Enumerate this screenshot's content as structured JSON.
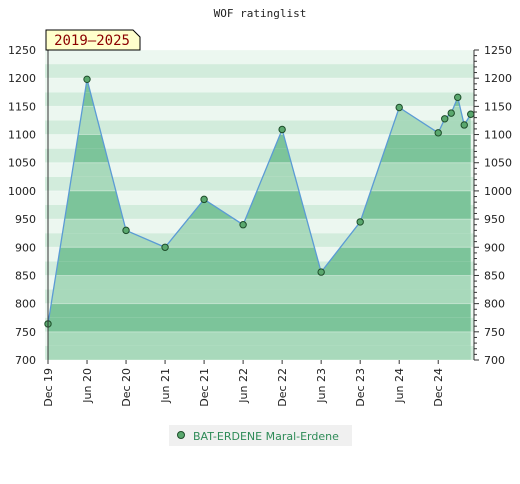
{
  "chart_data": {
    "type": "area",
    "title": "WOF ratinglist",
    "range_badge": "2019–2025",
    "xlabel": "",
    "ylabel": "",
    "ylim": [
      700,
      1250
    ],
    "y_ticks": [
      700,
      750,
      800,
      850,
      900,
      950,
      1000,
      1050,
      1100,
      1150,
      1200,
      1250
    ],
    "x_ticks": [
      {
        "label": "Dec 19",
        "x": 0
      },
      {
        "label": "Jun 20",
        "x": 6
      },
      {
        "label": "Dec 20",
        "x": 12
      },
      {
        "label": "Jun 21",
        "x": 18
      },
      {
        "label": "Dec 21",
        "x": 24
      },
      {
        "label": "Jun 22",
        "x": 30
      },
      {
        "label": "Dec 22",
        "x": 36
      },
      {
        "label": "Jun 23",
        "x": 42
      },
      {
        "label": "Dec 23",
        "x": 48
      },
      {
        "label": "Jun 24",
        "x": 54
      },
      {
        "label": "Dec 24",
        "x": 60
      }
    ],
    "xlim": [
      0,
      65.5
    ],
    "grid": true,
    "legend_position": "bottom",
    "colors": {
      "area_dark": "#7cc49a",
      "area_light": "#a8d9bb",
      "band_dark": "#d2ecdc",
      "band_light": "#ecf7f0",
      "line": "#5b9bd5",
      "marker": "#5aa86e",
      "badge_bg": "#ffffcc"
    },
    "series": [
      {
        "name": "BAT-ERDENE Maral-Erdene",
        "x": [
          0,
          6,
          12,
          18,
          24,
          30,
          36,
          42,
          48,
          54,
          60,
          61,
          62,
          63,
          64,
          65
        ],
        "values": [
          764,
          1198,
          930,
          900,
          985,
          940,
          1109,
          856,
          945,
          1148,
          1103,
          1128,
          1138,
          1166,
          1117,
          1136
        ]
      }
    ]
  }
}
